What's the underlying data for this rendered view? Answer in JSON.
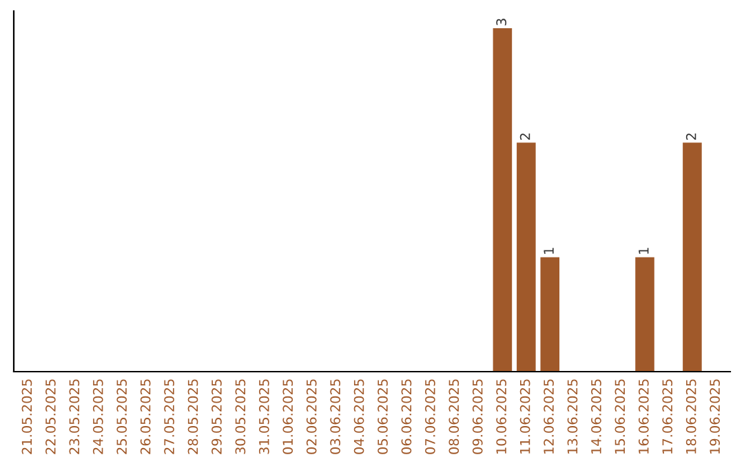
{
  "chart_data": {
    "type": "bar",
    "categories": [
      "21.05.2025",
      "22.05.2025",
      "23.05.2025",
      "24.05.2025",
      "25.05.2025",
      "26.05.2025",
      "27.05.2025",
      "28.05.2025",
      "29.05.2025",
      "30.05.2025",
      "31.05.2025",
      "01.06.2025",
      "02.06.2025",
      "03.06.2025",
      "04.06.2025",
      "05.06.2025",
      "06.06.2025",
      "07.06.2025",
      "08.06.2025",
      "09.06.2025",
      "10.06.2025",
      "11.06.2025",
      "12.06.2025",
      "13.06.2025",
      "14.06.2025",
      "15.06.2025",
      "16.06.2025",
      "17.06.2025",
      "18.06.2025",
      "19.06.2025"
    ],
    "values": [
      null,
      null,
      null,
      null,
      null,
      null,
      null,
      null,
      null,
      null,
      null,
      null,
      null,
      null,
      null,
      null,
      null,
      null,
      null,
      null,
      3,
      2,
      1,
      null,
      null,
      null,
      1,
      null,
      2,
      null
    ],
    "data_labels": true,
    "color": "#a0592a",
    "ylim": [
      0,
      3.15
    ],
    "tick_labels": "x",
    "grid": false,
    "legend": false
  }
}
